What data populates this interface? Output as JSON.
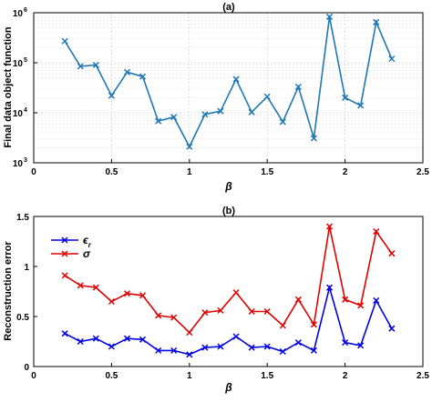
{
  "chart_data": [
    {
      "type": "line",
      "title": "(a)",
      "xlabel": "β",
      "ylabel": "Final data object function",
      "yscale": "log",
      "xlim": [
        0,
        2.5
      ],
      "ylim": [
        1000,
        1000000
      ],
      "x_ticks": [
        "0",
        "0.5",
        "1",
        "1.5",
        "2",
        "2.5"
      ],
      "y_ticks": [
        {
          "base": "10",
          "exp": "3",
          "value": 1000
        },
        {
          "base": "10",
          "exp": "4",
          "value": 10000
        },
        {
          "base": "10",
          "exp": "5",
          "value": 100000
        },
        {
          "base": "10",
          "exp": "6",
          "value": 1000000
        }
      ],
      "grid": true,
      "minor_grid": true,
      "series": [
        {
          "color": "#1f77b4",
          "marker": "x",
          "x": [
            0.2,
            0.3,
            0.4,
            0.5,
            0.6,
            0.7,
            0.8,
            0.9,
            1.0,
            1.1,
            1.2,
            1.3,
            1.4,
            1.5,
            1.6,
            1.7,
            1.8,
            1.9,
            2.0,
            2.1,
            2.2,
            2.3
          ],
          "y": [
            270000,
            85000,
            90000,
            22000,
            65000,
            53000,
            6800,
            8200,
            2100,
            9300,
            10800,
            47000,
            10300,
            21000,
            6600,
            33000,
            3100,
            830000,
            20000,
            14000,
            650000,
            120000
          ]
        }
      ]
    },
    {
      "type": "line",
      "title": "(b)",
      "xlabel": "β",
      "ylabel": "Reconstruction error",
      "xlim": [
        0,
        2.5
      ],
      "ylim": [
        0,
        1.5
      ],
      "x_ticks": [
        "0",
        "0.5",
        "1",
        "1.5",
        "2",
        "2.5"
      ],
      "y_ticks": [
        "0",
        "0.5",
        "1",
        "1.5"
      ],
      "legend_position": "top-left",
      "grid": false,
      "series": [
        {
          "name": "ϵ",
          "name_sub": "r",
          "color": "#0000e0",
          "marker": "x",
          "x": [
            0.2,
            0.3,
            0.4,
            0.5,
            0.6,
            0.7,
            0.8,
            0.9,
            1.0,
            1.1,
            1.2,
            1.3,
            1.4,
            1.5,
            1.6,
            1.7,
            1.8,
            1.9,
            2.0,
            2.1,
            2.2,
            2.3
          ],
          "y": [
            0.33,
            0.25,
            0.28,
            0.2,
            0.28,
            0.27,
            0.16,
            0.16,
            0.12,
            0.19,
            0.2,
            0.3,
            0.19,
            0.2,
            0.15,
            0.24,
            0.16,
            0.79,
            0.24,
            0.21,
            0.66,
            0.38
          ]
        },
        {
          "name": "σ",
          "color": "#e00000",
          "marker": "x",
          "x": [
            0.2,
            0.3,
            0.4,
            0.5,
            0.6,
            0.7,
            0.8,
            0.9,
            1.0,
            1.1,
            1.2,
            1.3,
            1.4,
            1.5,
            1.6,
            1.7,
            1.8,
            1.9,
            2.0,
            2.1,
            2.2,
            2.3
          ],
          "y": [
            0.91,
            0.81,
            0.79,
            0.65,
            0.73,
            0.71,
            0.51,
            0.49,
            0.34,
            0.54,
            0.56,
            0.74,
            0.55,
            0.55,
            0.41,
            0.67,
            0.42,
            1.4,
            0.67,
            0.61,
            1.35,
            1.13
          ]
        }
      ]
    }
  ]
}
